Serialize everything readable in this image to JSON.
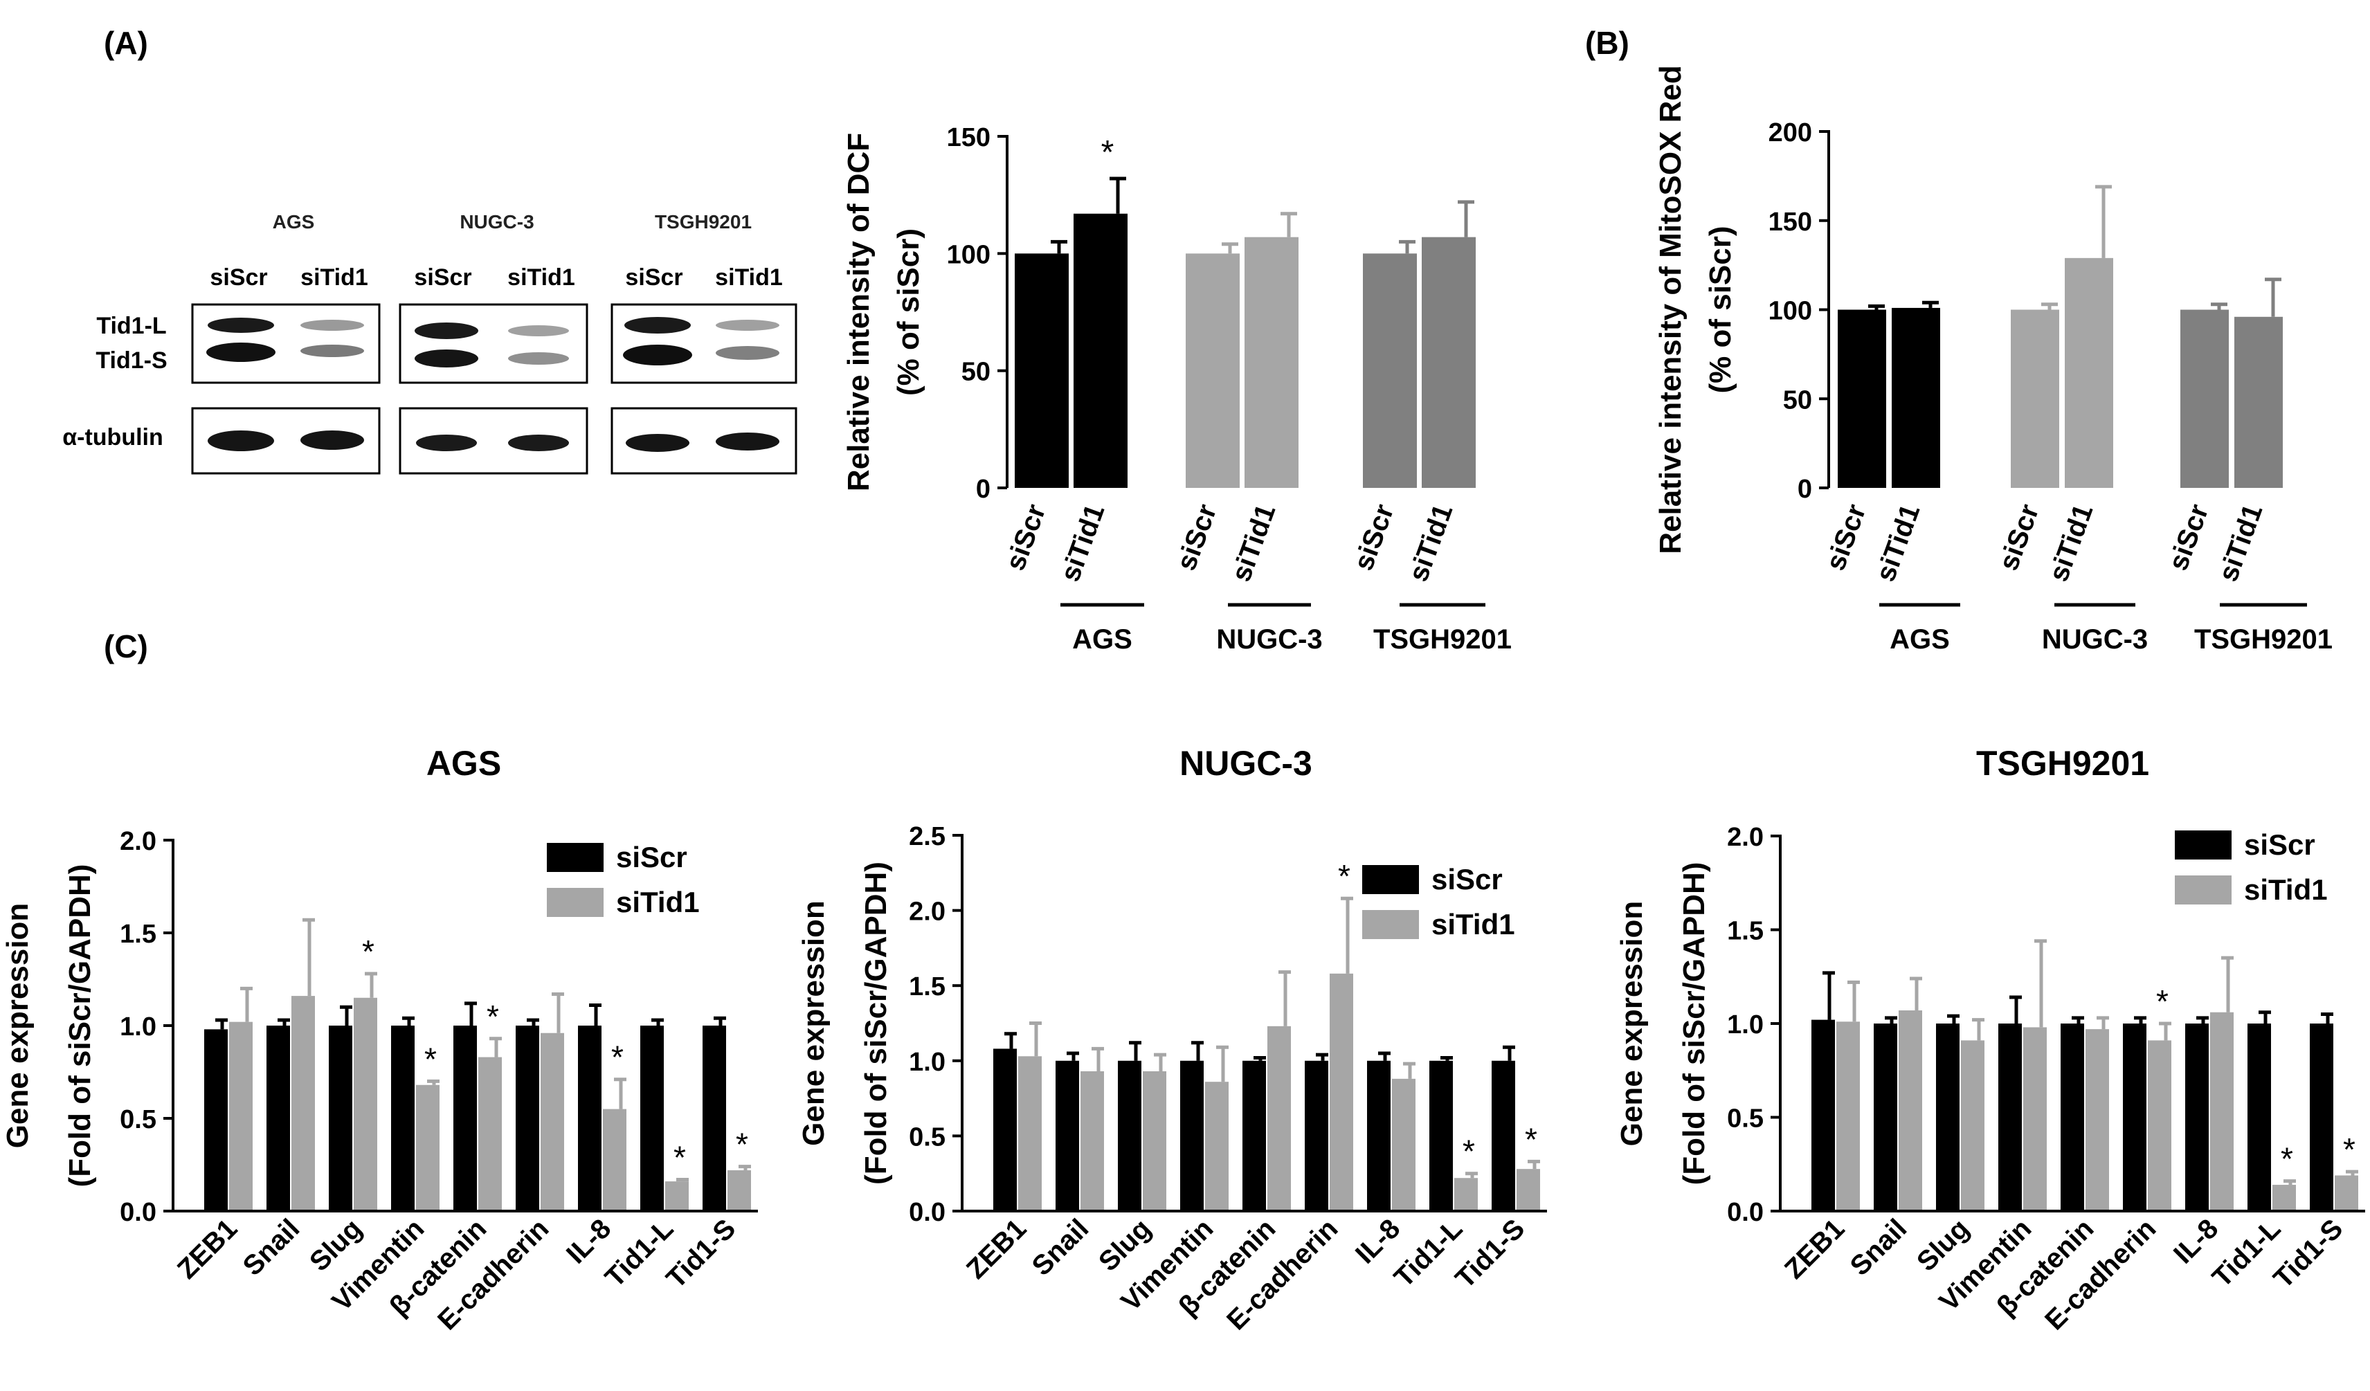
{
  "panel_labels": {
    "a": "(A)",
    "b": "(B)",
    "c": "(C)"
  },
  "western_blot": {
    "cell_lines": [
      "AGS",
      "NUGC-3",
      "TSGH9201"
    ],
    "lanes": [
      "siScr",
      "siTid1"
    ],
    "bands": [
      "Tid1-L",
      "Tid1-S",
      "α-tubulin"
    ]
  },
  "colors": {
    "black": "#000000",
    "light_gray": "#a6a6a6",
    "mid_gray": "#808080",
    "siScr": "#000000",
    "siTid1": "#a6a6a6"
  },
  "chart_data": [
    {
      "id": "dcf",
      "type": "bar",
      "ylabel": [
        "Relative intensity of DCF",
        "(% of siScr)"
      ],
      "ylim": [
        0,
        150
      ],
      "yticks": [
        0,
        50,
        100,
        150
      ],
      "categories": [
        "siScr",
        "siTid1",
        "siScr",
        "siTid1",
        "siScr",
        "siTid1"
      ],
      "groups": [
        "AGS",
        "NUGC-3",
        "TSGH9201"
      ],
      "values": [
        100,
        117,
        100,
        107,
        100,
        107
      ],
      "errors": [
        5,
        15,
        4,
        10,
        5,
        15
      ],
      "significant": [
        false,
        true,
        false,
        false,
        false,
        false
      ],
      "bar_colors": [
        "#000000",
        "#000000",
        "#a6a6a6",
        "#a6a6a6",
        "#808080",
        "#808080"
      ]
    },
    {
      "id": "mitosox",
      "type": "bar",
      "ylabel": [
        "Relative intensity of MitoSOX Red",
        "(% of siScr)"
      ],
      "ylim": [
        0,
        200
      ],
      "yticks": [
        0,
        50,
        100,
        150,
        200
      ],
      "categories": [
        "siScr",
        "siTid1",
        "siScr",
        "siTid1",
        "siScr",
        "siTid1"
      ],
      "groups": [
        "AGS",
        "NUGC-3",
        "TSGH9201"
      ],
      "values": [
        100,
        101,
        100,
        129,
        100,
        96
      ],
      "errors": [
        2,
        3,
        3,
        40,
        3,
        21
      ],
      "significant": [
        false,
        false,
        false,
        false,
        false,
        false
      ],
      "bar_colors": [
        "#000000",
        "#000000",
        "#a6a6a6",
        "#a6a6a6",
        "#808080",
        "#808080"
      ]
    },
    {
      "id": "gene_ags",
      "type": "bar",
      "title": "AGS",
      "ylabel": [
        "Gene expression",
        "(Fold of siScr/GAPDH)"
      ],
      "ylim": [
        0,
        2.0
      ],
      "yticks": [
        "0.0",
        "0.5",
        "1.0",
        "1.5",
        "2.0"
      ],
      "categories": [
        "ZEB1",
        "Snail",
        "Slug",
        "Vimentin",
        "β-catenin",
        "E-cadherin",
        "IL-8",
        "Tid1-L",
        "Tid1-S"
      ],
      "series": [
        {
          "name": "siScr",
          "values": [
            0.98,
            1.0,
            1.0,
            1.0,
            1.0,
            1.0,
            1.0,
            1.0,
            1.0
          ],
          "errors": [
            0.05,
            0.03,
            0.1,
            0.04,
            0.12,
            0.03,
            0.11,
            0.03,
            0.04
          ]
        },
        {
          "name": "siTid1",
          "values": [
            1.02,
            1.16,
            1.15,
            0.68,
            0.83,
            0.96,
            0.55,
            0.16,
            0.22
          ],
          "errors": [
            0.18,
            0.41,
            0.13,
            0.02,
            0.1,
            0.21,
            0.16,
            0.01,
            0.02
          ]
        }
      ],
      "significant_siTid1": [
        false,
        false,
        true,
        true,
        true,
        false,
        true,
        true,
        true
      ]
    },
    {
      "id": "gene_nugc3",
      "type": "bar",
      "title": "NUGC-3",
      "ylabel": [
        "Gene expression",
        "(Fold of siScr/GAPDH)"
      ],
      "ylim": [
        0,
        2.5
      ],
      "yticks": [
        "0.0",
        "0.5",
        "1.0",
        "1.5",
        "2.0",
        "2.5"
      ],
      "categories": [
        "ZEB1",
        "Snail",
        "Slug",
        "Vimentin",
        "β-catenin",
        "E-cadherin",
        "IL-8",
        "Tid1-L",
        "Tid1-S"
      ],
      "series": [
        {
          "name": "siScr",
          "values": [
            1.08,
            1.0,
            1.0,
            1.0,
            1.0,
            1.0,
            1.0,
            1.0,
            1.0
          ],
          "errors": [
            0.1,
            0.05,
            0.12,
            0.12,
            0.02,
            0.04,
            0.05,
            0.02,
            0.09
          ]
        },
        {
          "name": "siTid1",
          "values": [
            1.03,
            0.93,
            0.93,
            0.86,
            1.23,
            1.58,
            0.88,
            0.22,
            0.28
          ],
          "errors": [
            0.22,
            0.15,
            0.11,
            0.23,
            0.36,
            0.5,
            0.1,
            0.03,
            0.05
          ]
        }
      ],
      "significant_siTid1": [
        false,
        false,
        false,
        false,
        false,
        true,
        false,
        true,
        true
      ]
    },
    {
      "id": "gene_tsgh9201",
      "type": "bar",
      "title": "TSGH9201",
      "ylabel": [
        "Gene expression",
        "(Fold of siScr/GAPDH)"
      ],
      "ylim": [
        0,
        2.0
      ],
      "yticks": [
        "0.0",
        "0.5",
        "1.0",
        "1.5",
        "2.0"
      ],
      "categories": [
        "ZEB1",
        "Snail",
        "Slug",
        "Vimentin",
        "β-catenin",
        "E-cadherin",
        "IL-8",
        "Tid1-L",
        "Tid1-S"
      ],
      "series": [
        {
          "name": "siScr",
          "values": [
            1.02,
            1.0,
            1.0,
            1.0,
            1.0,
            1.0,
            1.0,
            1.0,
            1.0
          ],
          "errors": [
            0.25,
            0.03,
            0.04,
            0.14,
            0.03,
            0.03,
            0.03,
            0.06,
            0.05
          ]
        },
        {
          "name": "siTid1",
          "values": [
            1.01,
            1.07,
            0.91,
            0.98,
            0.97,
            0.91,
            1.06,
            0.14,
            0.19
          ],
          "errors": [
            0.21,
            0.17,
            0.11,
            0.46,
            0.06,
            0.09,
            0.29,
            0.02,
            0.02
          ]
        }
      ],
      "significant_siTid1": [
        false,
        false,
        false,
        false,
        false,
        true,
        false,
        true,
        true
      ]
    }
  ]
}
